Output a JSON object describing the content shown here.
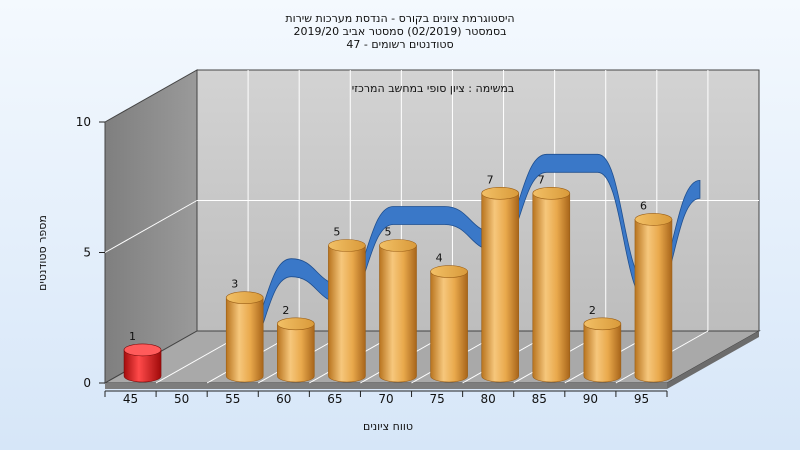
{
  "chart_data": {
    "type": "bar",
    "title_lines": [
      "היסטוגרמת ציונים בקורס - הנדסת מערכות שירות",
      "בסמסטר  (02/2019)  סמסטר אביב 2019/20",
      "סטודנטים רשומים - 47"
    ],
    "subtitle": "במשימה : ציון סופי במחשב המרכזי",
    "xlabel": "טווח ציונים",
    "ylabel": "מספר סטודנטים",
    "categories": [
      "45",
      "50",
      "55",
      "60",
      "65",
      "70",
      "75",
      "80",
      "85",
      "90",
      "95"
    ],
    "x_tick_labels": [
      "45",
      "50",
      "55",
      "60",
      "65",
      "70",
      "75",
      "80",
      "85",
      "90",
      "95"
    ],
    "values": [
      1,
      0,
      3,
      2,
      5,
      5,
      4,
      7,
      7,
      2,
      6
    ],
    "data_labels": [
      "1",
      "",
      "3",
      "2",
      "5",
      "5",
      "4",
      "7",
      "7",
      "2",
      "6"
    ],
    "y_ticks": [
      "0",
      "5",
      "10"
    ],
    "ylim": [
      0,
      10
    ],
    "grid": true,
    "colors": {
      "bar": "#e9a94c",
      "highlight_bar": "#e21b1b",
      "trend_ribbon": "#3a78c8",
      "back_wall": "#c9c9c9",
      "side_wall": "#8b8b8b",
      "floor": "#a9a9a9"
    }
  }
}
